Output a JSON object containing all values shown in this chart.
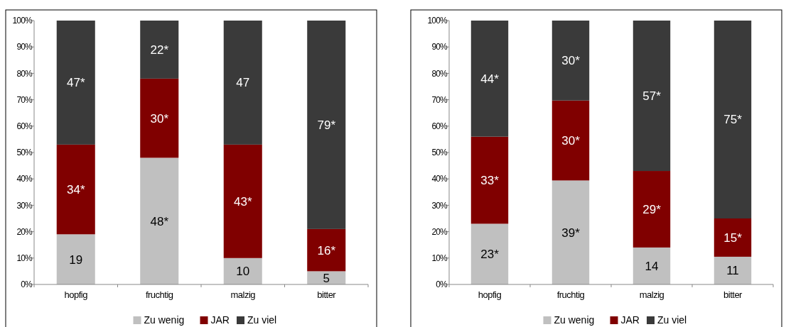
{
  "chart_data": [
    {
      "type": "bar",
      "stacked": true,
      "categories": [
        "hopfig",
        "fruchtig",
        "malzig",
        "bitter"
      ],
      "ylim": [
        0,
        100
      ],
      "yticks": [
        {
          "value": 0,
          "label": "0%"
        },
        {
          "value": 10,
          "label": "10%"
        },
        {
          "value": 20,
          "label": "20%"
        },
        {
          "value": 30,
          "label": "30%"
        },
        {
          "value": 40,
          "label": "40%"
        },
        {
          "value": 50,
          "label": "50%"
        },
        {
          "value": 60,
          "label": "60%"
        },
        {
          "value": 70,
          "label": "70%"
        },
        {
          "value": 80,
          "label": "80%"
        },
        {
          "value": 90,
          "label": "90%"
        },
        {
          "value": 100,
          "label": "100%"
        }
      ],
      "legend": "bottom",
      "series": [
        {
          "name": "Zu wenig",
          "color": "#c0c0c0",
          "values": [
            19,
            48,
            10,
            5
          ],
          "value_labels": [
            "19",
            "48*",
            "10",
            "5"
          ]
        },
        {
          "name": "JAR",
          "color": "#800000",
          "values": [
            34,
            30,
            43,
            16
          ],
          "value_labels": [
            "34*",
            "30*",
            "43*",
            "16*"
          ]
        },
        {
          "name": "Zu viel",
          "color": "#3a3a3a",
          "values": [
            47,
            22,
            47,
            79
          ],
          "value_labels": [
            "47*",
            "22*",
            "47",
            "79*"
          ]
        }
      ]
    },
    {
      "type": "bar",
      "stacked": true,
      "categories": [
        "hopfig",
        "fruchtig",
        "malzig",
        "bitter"
      ],
      "ylim": [
        0,
        100
      ],
      "yticks": [
        {
          "value": 0,
          "label": "0%"
        },
        {
          "value": 10,
          "label": "10%"
        },
        {
          "value": 20,
          "label": "20%"
        },
        {
          "value": 30,
          "label": "30%"
        },
        {
          "value": 40,
          "label": "40%"
        },
        {
          "value": 50,
          "label": "50%"
        },
        {
          "value": 60,
          "label": "60%"
        },
        {
          "value": 70,
          "label": "70%"
        },
        {
          "value": 80,
          "label": "80%"
        },
        {
          "value": 90,
          "label": "90%"
        },
        {
          "value": 100,
          "label": "100%"
        }
      ],
      "legend": "bottom",
      "series": [
        {
          "name": "Zu wenig",
          "color": "#c0c0c0",
          "values": [
            23,
            39.4,
            14,
            10.5
          ],
          "value_labels": [
            "23*",
            "39*",
            "14",
            "11"
          ]
        },
        {
          "name": "JAR",
          "color": "#800000",
          "values": [
            33,
            30.3,
            29,
            14.5
          ],
          "value_labels": [
            "33*",
            "30*",
            "29*",
            "15*"
          ]
        },
        {
          "name": "Zu viel",
          "color": "#3a3a3a",
          "values": [
            44,
            30.3,
            57,
            75
          ],
          "value_labels": [
            "44*",
            "30*",
            "57*",
            "75*"
          ]
        }
      ]
    }
  ]
}
